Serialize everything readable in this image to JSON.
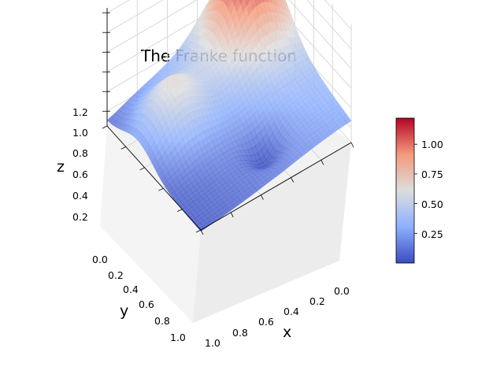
{
  "chart_data": {
    "type": "surface3d",
    "title": "The Franke function",
    "function": "Franke",
    "xlabel": "x",
    "ylabel": "y",
    "zlabel": "z",
    "xlim": [
      0.0,
      1.0
    ],
    "ylim": [
      0.0,
      1.0
    ],
    "zlim": [
      0.05,
      1.22
    ],
    "x_ticks": [
      "0.0",
      "0.2",
      "0.4",
      "0.6",
      "0.8",
      "1.0"
    ],
    "y_ticks": [
      "0.0",
      "0.2",
      "0.4",
      "0.6",
      "0.8",
      "1.0"
    ],
    "z_ticks": [
      "0.2",
      "0.4",
      "0.6",
      "0.8",
      "1.0",
      "1.2"
    ],
    "x_tick_values": [
      0.0,
      0.2,
      0.4,
      0.6,
      0.8,
      1.0
    ],
    "y_tick_values": [
      0.0,
      0.2,
      0.4,
      0.6,
      0.8,
      1.0
    ],
    "z_tick_values": [
      0.2,
      0.4,
      0.6,
      0.8,
      1.0,
      1.2
    ],
    "colormap": "coolwarm",
    "colorbar": {
      "ticks": [
        "0.25",
        "0.50",
        "0.75",
        "1.00"
      ],
      "tick_values": [
        0.25,
        0.5,
        0.75,
        1.0
      ],
      "range": [
        0.0,
        1.22
      ]
    },
    "grid": true,
    "value_range": [
      0.0,
      1.22
    ],
    "peak": {
      "x": 0.2,
      "y": 0.2,
      "z": 1.22
    },
    "dip": {
      "x": 0.4,
      "y": 0.6,
      "z": 0.05
    }
  }
}
